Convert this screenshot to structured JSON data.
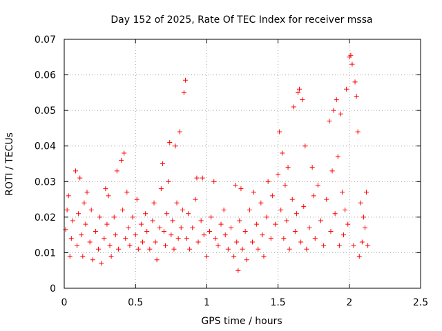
{
  "chart_data": {
    "type": "scatter",
    "title": "Day 152 of 2025, Rate Of TEC Index for receiver mssa",
    "xlabel": "GPS time / hours",
    "ylabel": "ROTI / TECUs",
    "xlim": [
      0,
      2.5
    ],
    "ylim": [
      0,
      0.07
    ],
    "x_ticks": [
      0,
      0.5,
      1,
      1.5,
      2,
      2.5
    ],
    "x_tick_labels": [
      "0",
      "0.5",
      "1",
      "1.5",
      "2",
      "2.5"
    ],
    "y_ticks": [
      0,
      0.01,
      0.02,
      0.03,
      0.04,
      0.05,
      0.06,
      0.07
    ],
    "y_tick_labels": [
      "0",
      "0.01",
      "0.02",
      "0.03",
      "0.04",
      "0.05",
      "0.06",
      "0.07"
    ],
    "grid": true,
    "marker": "+",
    "color": "#ff0000",
    "series": [
      {
        "name": "ROTI",
        "points": [
          [
            0.01,
            0.0165
          ],
          [
            0.02,
            0.022
          ],
          [
            0.03,
            0.026
          ],
          [
            0.04,
            0.009
          ],
          [
            0.05,
            0.014
          ],
          [
            0.06,
            0.019
          ],
          [
            0.08,
            0.033
          ],
          [
            0.09,
            0.012
          ],
          [
            0.1,
            0.021
          ],
          [
            0.11,
            0.031
          ],
          [
            0.12,
            0.015
          ],
          [
            0.13,
            0.009
          ],
          [
            0.14,
            0.024
          ],
          [
            0.15,
            0.018
          ],
          [
            0.16,
            0.027
          ],
          [
            0.18,
            0.013
          ],
          [
            0.19,
            0.022
          ],
          [
            0.2,
            0.008
          ],
          [
            0.22,
            0.016
          ],
          [
            0.24,
            0.011
          ],
          [
            0.25,
            0.02
          ],
          [
            0.26,
            0.007
          ],
          [
            0.28,
            0.014
          ],
          [
            0.29,
            0.028
          ],
          [
            0.3,
            0.018
          ],
          [
            0.31,
            0.026
          ],
          [
            0.32,
            0.012
          ],
          [
            0.33,
            0.009
          ],
          [
            0.35,
            0.02
          ],
          [
            0.36,
            0.015
          ],
          [
            0.37,
            0.033
          ],
          [
            0.38,
            0.011
          ],
          [
            0.4,
            0.036
          ],
          [
            0.41,
            0.022
          ],
          [
            0.42,
            0.038
          ],
          [
            0.43,
            0.014
          ],
          [
            0.44,
            0.027
          ],
          [
            0.45,
            0.017
          ],
          [
            0.46,
            0.012
          ],
          [
            0.48,
            0.02
          ],
          [
            0.5,
            0.015
          ],
          [
            0.51,
            0.025
          ],
          [
            0.52,
            0.011
          ],
          [
            0.54,
            0.018
          ],
          [
            0.55,
            0.013
          ],
          [
            0.57,
            0.021
          ],
          [
            0.58,
            0.016
          ],
          [
            0.6,
            0.011
          ],
          [
            0.62,
            0.019
          ],
          [
            0.63,
            0.024
          ],
          [
            0.64,
            0.013
          ],
          [
            0.65,
            0.008
          ],
          [
            0.67,
            0.017
          ],
          [
            0.68,
            0.028
          ],
          [
            0.69,
            0.035
          ],
          [
            0.7,
            0.016
          ],
          [
            0.71,
            0.012
          ],
          [
            0.72,
            0.021
          ],
          [
            0.73,
            0.03
          ],
          [
            0.74,
            0.041
          ],
          [
            0.75,
            0.015
          ],
          [
            0.76,
            0.019
          ],
          [
            0.77,
            0.011
          ],
          [
            0.78,
            0.04
          ],
          [
            0.79,
            0.024
          ],
          [
            0.8,
            0.014
          ],
          [
            0.81,
            0.044
          ],
          [
            0.82,
            0.017
          ],
          [
            0.83,
            0.022
          ],
          [
            0.84,
            0.055
          ],
          [
            0.85,
            0.0585
          ],
          [
            0.86,
            0.014
          ],
          [
            0.87,
            0.021
          ],
          [
            0.88,
            0.011
          ],
          [
            0.9,
            0.017
          ],
          [
            0.92,
            0.025
          ],
          [
            0.93,
            0.031
          ],
          [
            0.94,
            0.013
          ],
          [
            0.96,
            0.019
          ],
          [
            0.97,
            0.031
          ],
          [
            0.98,
            0.015
          ],
          [
            1.0,
            0.009
          ],
          [
            1.02,
            0.016
          ],
          [
            1.03,
            0.02
          ],
          [
            1.05,
            0.03
          ],
          [
            1.06,
            0.014
          ],
          [
            1.08,
            0.012
          ],
          [
            1.1,
            0.018
          ],
          [
            1.12,
            0.022
          ],
          [
            1.13,
            0.015
          ],
          [
            1.15,
            0.011
          ],
          [
            1.17,
            0.017
          ],
          [
            1.19,
            0.009
          ],
          [
            1.2,
            0.029
          ],
          [
            1.21,
            0.013
          ],
          [
            1.22,
            0.005
          ],
          [
            1.23,
            0.019
          ],
          [
            1.24,
            0.028
          ],
          [
            1.25,
            0.011
          ],
          [
            1.27,
            0.016
          ],
          [
            1.28,
            0.008
          ],
          [
            1.3,
            0.022
          ],
          [
            1.32,
            0.013
          ],
          [
            1.33,
            0.027
          ],
          [
            1.35,
            0.018
          ],
          [
            1.36,
            0.011
          ],
          [
            1.38,
            0.024
          ],
          [
            1.39,
            0.015
          ],
          [
            1.4,
            0.009
          ],
          [
            1.42,
            0.02
          ],
          [
            1.43,
            0.03
          ],
          [
            1.45,
            0.014
          ],
          [
            1.46,
            0.026
          ],
          [
            1.48,
            0.018
          ],
          [
            1.5,
            0.032
          ],
          [
            1.51,
            0.044
          ],
          [
            1.52,
            0.022
          ],
          [
            1.53,
            0.038
          ],
          [
            1.54,
            0.014
          ],
          [
            1.55,
            0.029
          ],
          [
            1.56,
            0.019
          ],
          [
            1.57,
            0.034
          ],
          [
            1.58,
            0.011
          ],
          [
            1.6,
            0.025
          ],
          [
            1.61,
            0.051
          ],
          [
            1.62,
            0.016
          ],
          [
            1.63,
            0.021
          ],
          [
            1.64,
            0.055
          ],
          [
            1.65,
            0.056
          ],
          [
            1.66,
            0.013
          ],
          [
            1.67,
            0.053
          ],
          [
            1.68,
            0.023
          ],
          [
            1.69,
            0.04
          ],
          [
            1.7,
            0.011
          ],
          [
            1.72,
            0.017
          ],
          [
            1.74,
            0.034
          ],
          [
            1.75,
            0.026
          ],
          [
            1.76,
            0.014
          ],
          [
            1.78,
            0.029
          ],
          [
            1.8,
            0.019
          ],
          [
            1.82,
            0.012
          ],
          [
            1.84,
            0.025
          ],
          [
            1.86,
            0.047
          ],
          [
            1.87,
            0.016
          ],
          [
            1.88,
            0.033
          ],
          [
            1.89,
            0.05
          ],
          [
            1.9,
            0.021
          ],
          [
            1.91,
            0.053
          ],
          [
            1.92,
            0.037
          ],
          [
            1.93,
            0.012
          ],
          [
            1.94,
            0.049
          ],
          [
            1.95,
            0.027
          ],
          [
            1.96,
            0.015
          ],
          [
            1.97,
            0.022
          ],
          [
            1.98,
            0.056
          ],
          [
            1.99,
            0.018
          ],
          [
            2.0,
            0.065
          ],
          [
            2.01,
            0.0655
          ],
          [
            2.02,
            0.063
          ],
          [
            2.03,
            0.012
          ],
          [
            2.04,
            0.058
          ],
          [
            2.05,
            0.054
          ],
          [
            2.06,
            0.044
          ],
          [
            2.07,
            0.009
          ],
          [
            2.08,
            0.024
          ],
          [
            2.09,
            0.013
          ],
          [
            2.1,
            0.02
          ],
          [
            2.11,
            0.017
          ],
          [
            2.12,
            0.027
          ],
          [
            2.13,
            0.012
          ]
        ]
      }
    ]
  }
}
